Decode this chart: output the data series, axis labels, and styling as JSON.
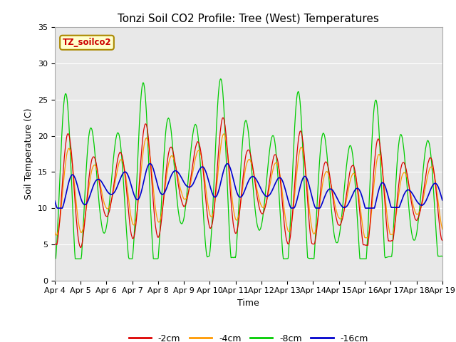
{
  "title": "Tonzi Soil CO2 Profile: Tree (West) Temperatures",
  "xlabel": "Time",
  "ylabel": "Soil Temperature (C)",
  "ylim": [
    0,
    35
  ],
  "legend_label": "TZ_soilco2",
  "series_labels": [
    "-2cm",
    "-4cm",
    "-8cm",
    "-16cm"
  ],
  "series_colors": [
    "#dd0000",
    "#ff9900",
    "#00cc00",
    "#0000cc"
  ],
  "x_tick_labels": [
    "Apr 4",
    "Apr 5",
    "Apr 6",
    "Apr 7",
    "Apr 8",
    "Apr 9",
    "Apr 10",
    "Apr 11",
    "Apr 12",
    "Apr 13",
    "Apr 14",
    "Apr 15",
    "Apr 16",
    "Apr 17",
    "Apr 18",
    "Apr 19"
  ],
  "background_color": "#e8e8e8",
  "plot_bg_color": "#e8e8e8",
  "title_fontsize": 11,
  "axis_fontsize": 9,
  "tick_fontsize": 8
}
